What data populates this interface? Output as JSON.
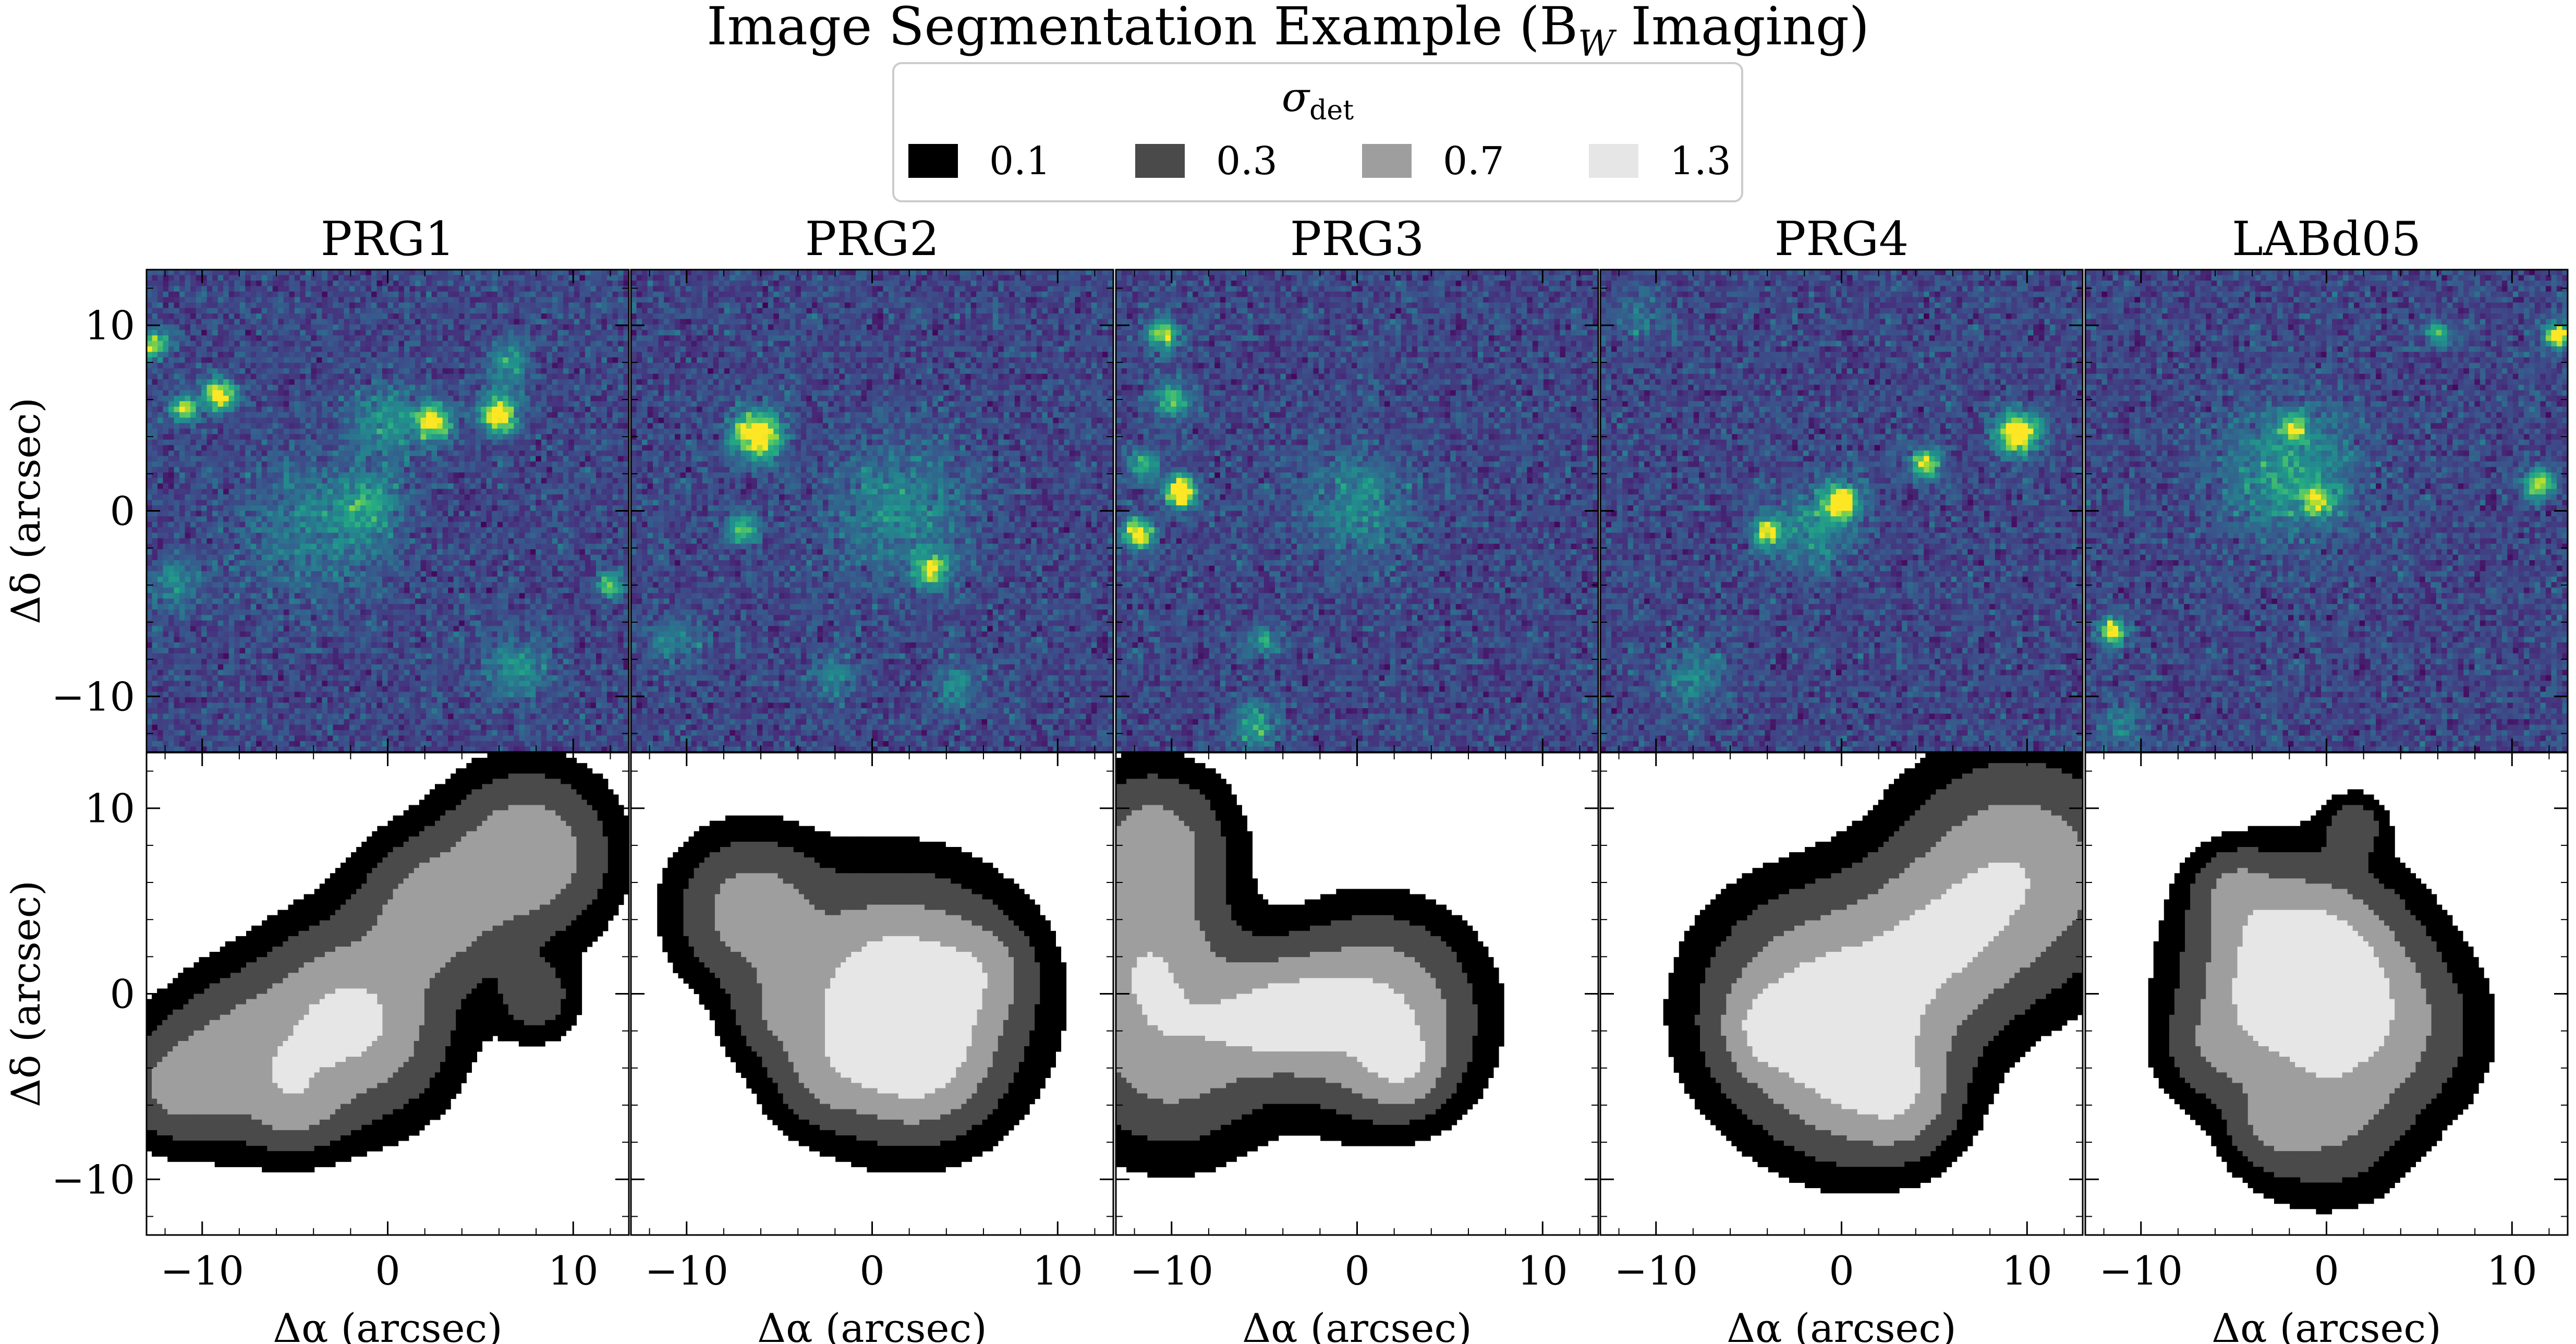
{
  "figure": {
    "title": "Image Segmentation Example (B",
    "title_sub": "W",
    "title_tail": " Imaging)"
  },
  "legend": {
    "title_symbol": "σ",
    "title_sub": "det",
    "entries": [
      {
        "label": "0.1",
        "color": "#000000"
      },
      {
        "label": "0.3",
        "color": "#4a4a4a"
      },
      {
        "label": "0.7",
        "color": "#9e9e9e"
      },
      {
        "label": "1.3",
        "color": "#e6e6e6"
      }
    ]
  },
  "colors": {
    "viridis_dark": "#3b1f5c",
    "viridis_mid": "#2a788e",
    "viridis_green": "#22a884",
    "viridis_yellow": "#fde725"
  },
  "axes": {
    "xlabel": "Δα (arcsec)",
    "ylabel": "Δδ (arcsec)",
    "xticks": [
      "−10",
      "0",
      "10"
    ],
    "yticks": [
      "10",
      "0",
      "−10"
    ]
  },
  "chart_data": [
    {
      "type": "heatmap",
      "row": "image",
      "cmap": "viridis",
      "xlim": [
        -13,
        13
      ],
      "ylim": [
        -13,
        13
      ],
      "xticks": [
        -10,
        0,
        10
      ],
      "yticks": [
        -10,
        0,
        10
      ],
      "panels": [
        {
          "title": "PRG1",
          "sources": [
            [
              -12.6,
              9,
              0.6,
              0.7
            ],
            [
              -11,
              5.5,
              0.5,
              0.8
            ],
            [
              -9,
              6.2,
              0.6,
              0.9
            ],
            [
              2.5,
              4.8,
              0.7,
              0.8
            ],
            [
              6,
              5.2,
              0.7,
              0.9
            ],
            [
              0,
              4.8,
              1.3,
              0.35
            ],
            [
              -4,
              -1,
              2.6,
              0.25
            ],
            [
              -1,
              0.3,
              1.2,
              0.35
            ],
            [
              12,
              -4,
              0.5,
              0.6
            ],
            [
              -11.5,
              -4,
              1.0,
              0.3
            ],
            [
              7,
              -8.5,
              1.2,
              0.35
            ],
            [
              6.5,
              8,
              0.8,
              0.4
            ]
          ]
        },
        {
          "title": "PRG2",
          "sources": [
            [
              -6.2,
              4.1,
              0.9,
              1.0
            ],
            [
              1.5,
              0,
              2.5,
              0.3
            ],
            [
              3.2,
              -3.2,
              0.6,
              0.7
            ],
            [
              -7,
              -1,
              0.6,
              0.6
            ],
            [
              -10.5,
              -7,
              1.0,
              0.25
            ],
            [
              4.5,
              -9.5,
              0.8,
              0.35
            ],
            [
              -2,
              -9,
              0.8,
              0.3
            ]
          ]
        },
        {
          "title": "PRG3",
          "sources": [
            [
              -10.5,
              9.5,
              0.6,
              0.7
            ],
            [
              -9.5,
              1,
              0.6,
              1.0
            ],
            [
              -11.8,
              -1.2,
              0.6,
              0.9
            ],
            [
              -10,
              6,
              0.7,
              0.5
            ],
            [
              -11.5,
              2.5,
              0.6,
              0.5
            ],
            [
              0,
              0.3,
              2.0,
              0.3
            ],
            [
              -5,
              -7,
              0.6,
              0.4
            ],
            [
              -5.5,
              -11.5,
              0.8,
              0.45
            ]
          ]
        },
        {
          "title": "PRG4",
          "sources": [
            [
              9.5,
              4.2,
              0.8,
              1.0
            ],
            [
              4.5,
              2.6,
              0.6,
              0.7
            ],
            [
              0,
              0.5,
              0.7,
              0.8
            ],
            [
              -4,
              -1.2,
              0.6,
              0.7
            ],
            [
              -1.5,
              -1,
              1.5,
              0.3
            ],
            [
              -8,
              -9,
              1.2,
              0.25
            ],
            [
              -11,
              10.5,
              1,
              0.2
            ]
          ]
        },
        {
          "title": "LABd05",
          "sources": [
            [
              -2,
              2,
              2.4,
              0.4
            ],
            [
              -1.8,
              4.5,
              0.5,
              0.6
            ],
            [
              -0.5,
              0.5,
              0.6,
              0.5
            ],
            [
              -11.5,
              -6.5,
              0.5,
              0.9
            ],
            [
              12.5,
              9.5,
              0.5,
              0.9
            ],
            [
              11.5,
              1.5,
              0.6,
              0.7
            ],
            [
              6,
              9.5,
              0.5,
              0.5
            ],
            [
              -11,
              -11.5,
              0.8,
              0.3
            ]
          ]
        }
      ]
    },
    {
      "type": "heatmap",
      "row": "segmentation",
      "xlim": [
        -13,
        13
      ],
      "ylim": [
        -13,
        13
      ],
      "levels": [
        0.1,
        0.3,
        0.7,
        1.3
      ],
      "panels": [
        {
          "title": "PRG1",
          "sources": [
            [
              7.5,
              7.5,
              2.6,
              1.2
            ],
            [
              2.5,
              4.5,
              2.4,
              1.0
            ],
            [
              -2,
              -1.5,
              3.0,
              1.5
            ],
            [
              -8,
              -3.5,
              2.6,
              0.9
            ],
            [
              -11.5,
              -5,
              1.8,
              0.7
            ],
            [
              -5,
              -6,
              1.6,
              0.6
            ],
            [
              8,
              -0.2,
              1.4,
              0.5
            ]
          ]
        },
        {
          "title": "PRG2",
          "sources": [
            [
              -6.5,
              4.5,
              2.4,
              1.0
            ],
            [
              -5,
              -1,
              1.6,
              0.45
            ],
            [
              -2.5,
              -4.5,
              1.6,
              0.45
            ],
            [
              1.5,
              -0.5,
              3.6,
              2.1
            ],
            [
              6,
              1.3,
              1.6,
              0.45
            ],
            [
              2.5,
              -4,
              2.2,
              0.7
            ]
          ]
        },
        {
          "title": "PRG3",
          "sources": [
            [
              -11,
              8,
              2.4,
              1.0
            ],
            [
              -11.5,
              2,
              2.8,
              1.0
            ],
            [
              -10,
              -3,
              3.2,
              1.0
            ],
            [
              -6,
              -1.5,
              1.8,
              0.6
            ],
            [
              -3.5,
              -1,
              2.0,
              1.0
            ],
            [
              1,
              -1.2,
              3.0,
              1.5
            ],
            [
              2.5,
              -4,
              1.5,
              0.7
            ]
          ]
        },
        {
          "title": "PRG4",
          "sources": [
            [
              9.5,
              6.5,
              3.6,
              1.2
            ],
            [
              5,
              2.5,
              3.0,
              1.0
            ],
            [
              -1,
              -1,
              3.6,
              1.6
            ],
            [
              1.5,
              -4.5,
              2.8,
              0.9
            ],
            [
              -4,
              -2,
              1.5,
              0.7
            ],
            [
              3.5,
              -6,
              1.6,
              0.5
            ]
          ]
        },
        {
          "title": "LABd05",
          "sources": [
            [
              -1.3,
              1,
              3.2,
              2.4
            ],
            [
              0,
              -6.5,
              2.6,
              0.75
            ],
            [
              1.5,
              9,
              1.0,
              0.55
            ],
            [
              3.5,
              -2,
              2.8,
              0.7
            ],
            [
              -5,
              5.5,
              1.4,
              0.6
            ],
            [
              -6,
              -3,
              1.8,
              0.5
            ],
            [
              -3,
              -7,
              1.5,
              0.5
            ]
          ]
        }
      ]
    }
  ]
}
